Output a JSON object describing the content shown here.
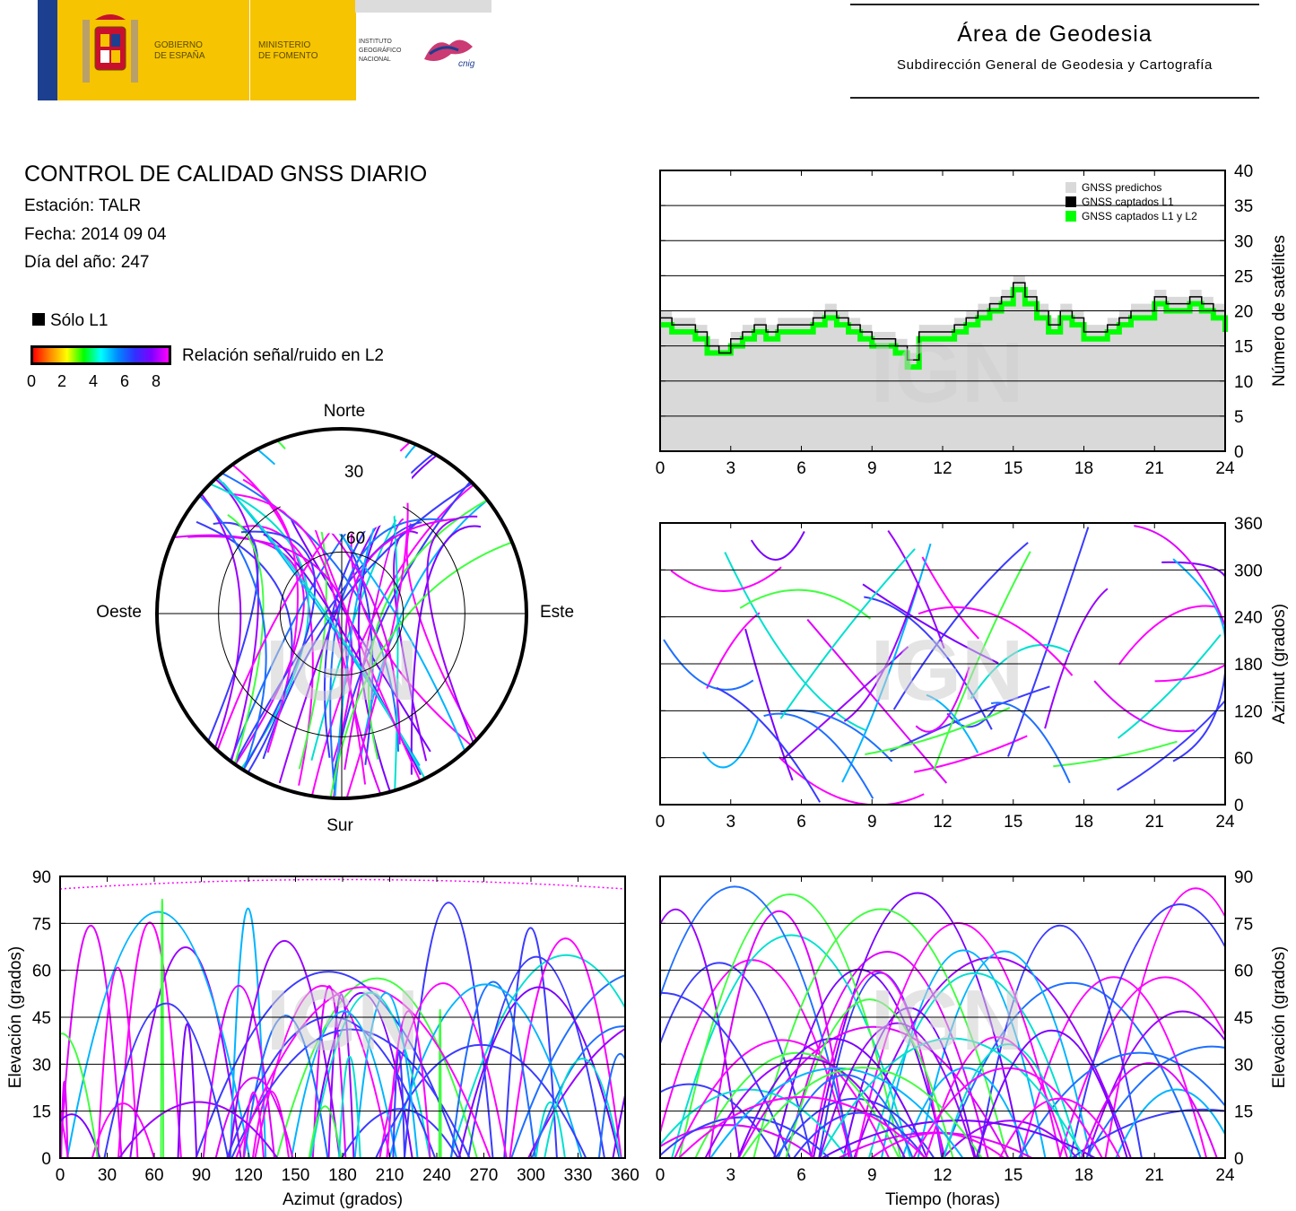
{
  "header": {
    "gov_line1": "GOBIERNO",
    "gov_line2": "DE ESPAÑA",
    "min_line1": "MINISTERIO",
    "min_line2": "DE FOMENTO",
    "ign_line1": "INSTITUTO",
    "ign_line2": "GEOGRÁFICO",
    "ign_line3": "NACIONAL",
    "cnig": "cnig",
    "dept_title": "Área de Geodesia",
    "dept_subtitle": "Subdirección General de Geodesia y Cartografía"
  },
  "report": {
    "title": "CONTROL DE CALIDAD GNSS DIARIO",
    "station": "Estación: TALR",
    "date": "Fecha: 2014 09 04",
    "doy": "Día del año: 247"
  },
  "legend": {
    "l1_only": "Sólo L1",
    "snr_label": "Relación señal/ruido en L2",
    "snr_ticks": [
      "0",
      "2",
      "4",
      "6",
      "8"
    ],
    "snr_colors": [
      "#ff0000",
      "#ff8800",
      "#ffff00",
      "#00ff00",
      "#00ffff",
      "#0088ff",
      "#3030ff",
      "#8000ff",
      "#ff00ff"
    ]
  },
  "watermark": "IGN",
  "colors": {
    "predicted": "#d9d9d9",
    "l1": "#000000",
    "l1l2": "#00ff00"
  },
  "chart_data": [
    {
      "id": "skyplot",
      "type": "polar",
      "directions": {
        "north": "Norte",
        "south": "Sur",
        "east": "Este",
        "west": "Oeste"
      },
      "rings": [
        "30",
        "60"
      ],
      "note": "Satellite tracks in sky view; northern sky cap (elevation above ~30 deg toward north) is empty."
    },
    {
      "id": "satellites",
      "type": "area",
      "ylabel": "Número de satélites",
      "xlim": [
        0,
        24
      ],
      "ylim": [
        0,
        40
      ],
      "xticks": [
        "0",
        "3",
        "6",
        "9",
        "12",
        "15",
        "18",
        "21",
        "24"
      ],
      "yticks": [
        "0",
        "5",
        "10",
        "15",
        "20",
        "25",
        "30",
        "35",
        "40"
      ],
      "legend": [
        "GNSS predichos",
        "GNSS captados L1",
        "GNSS captados L1 y L2"
      ],
      "legend_position": "top-right",
      "x": [
        0,
        0.5,
        1,
        1.5,
        2,
        2.5,
        3,
        3.5,
        4,
        4.5,
        5,
        5.5,
        6,
        6.5,
        7,
        7.5,
        8,
        8.5,
        9,
        9.5,
        10,
        10.5,
        11,
        11.5,
        12,
        12.5,
        13,
        13.5,
        14,
        14.5,
        15,
        15.5,
        16,
        16.5,
        17,
        17.5,
        18,
        18.5,
        19,
        19.5,
        20,
        20.5,
        21,
        21.5,
        22,
        22.5,
        23,
        23.5,
        24
      ],
      "series": [
        {
          "name": "GNSS predichos",
          "values": [
            20,
            19,
            19,
            18,
            16,
            15,
            17,
            18,
            19,
            18,
            19,
            19,
            19,
            20,
            21,
            20,
            19,
            18,
            17,
            17,
            16,
            14,
            18,
            18,
            18,
            19,
            20,
            21,
            22,
            23,
            25,
            23,
            21,
            19,
            21,
            20,
            18,
            18,
            19,
            20,
            21,
            21,
            23,
            22,
            22,
            23,
            22,
            21,
            19
          ]
        },
        {
          "name": "GNSS captados L1",
          "values": [
            19,
            18,
            18,
            17,
            15,
            14,
            16,
            17,
            18,
            17,
            18,
            18,
            18,
            19,
            20,
            19,
            18,
            17,
            16,
            16,
            15,
            13,
            17,
            17,
            17,
            18,
            19,
            20,
            21,
            22,
            24,
            22,
            20,
            18,
            20,
            19,
            17,
            17,
            18,
            19,
            20,
            20,
            22,
            21,
            21,
            22,
            21,
            20,
            18
          ]
        },
        {
          "name": "GNSS captados L1 y L2",
          "values": [
            18,
            17,
            17,
            16,
            14,
            14,
            15,
            16,
            17,
            16,
            17,
            17,
            17,
            18,
            19,
            18,
            17,
            16,
            15,
            15,
            14,
            12,
            16,
            16,
            16,
            17,
            18,
            19,
            20,
            21,
            23,
            21,
            19,
            17,
            19,
            18,
            16,
            16,
            17,
            18,
            19,
            19,
            21,
            20,
            20,
            21,
            20,
            19,
            17
          ]
        }
      ]
    },
    {
      "id": "azimuth-time",
      "type": "scatter",
      "ylabel": "Azimut (grados)",
      "xlim": [
        0,
        24
      ],
      "ylim": [
        0,
        360
      ],
      "xticks": [
        "0",
        "3",
        "6",
        "9",
        "12",
        "15",
        "18",
        "21",
        "24"
      ],
      "yticks": [
        "0",
        "60",
        "120",
        "180",
        "240",
        "300",
        "360"
      ]
    },
    {
      "id": "elevation-azimuth",
      "type": "scatter",
      "xlabel": "Azimut (grados)",
      "ylabel": "Elevación (grados)",
      "xlim": [
        0,
        360
      ],
      "ylim": [
        0,
        90
      ],
      "xticks": [
        "0",
        "30",
        "60",
        "90",
        "120",
        "150",
        "180",
        "210",
        "240",
        "270",
        "300",
        "330",
        "360"
      ],
      "yticks": [
        "0",
        "15",
        "30",
        "45",
        "60",
        "75",
        "90"
      ]
    },
    {
      "id": "elevation-time",
      "type": "scatter",
      "xlabel": "Tiempo (horas)",
      "ylabel": "Elevación (grados)",
      "xlim": [
        0,
        24
      ],
      "ylim": [
        0,
        90
      ],
      "xticks": [
        "0",
        "3",
        "6",
        "9",
        "12",
        "15",
        "18",
        "21",
        "24"
      ],
      "yticks": [
        "0",
        "15",
        "30",
        "45",
        "60",
        "75",
        "90"
      ]
    }
  ]
}
